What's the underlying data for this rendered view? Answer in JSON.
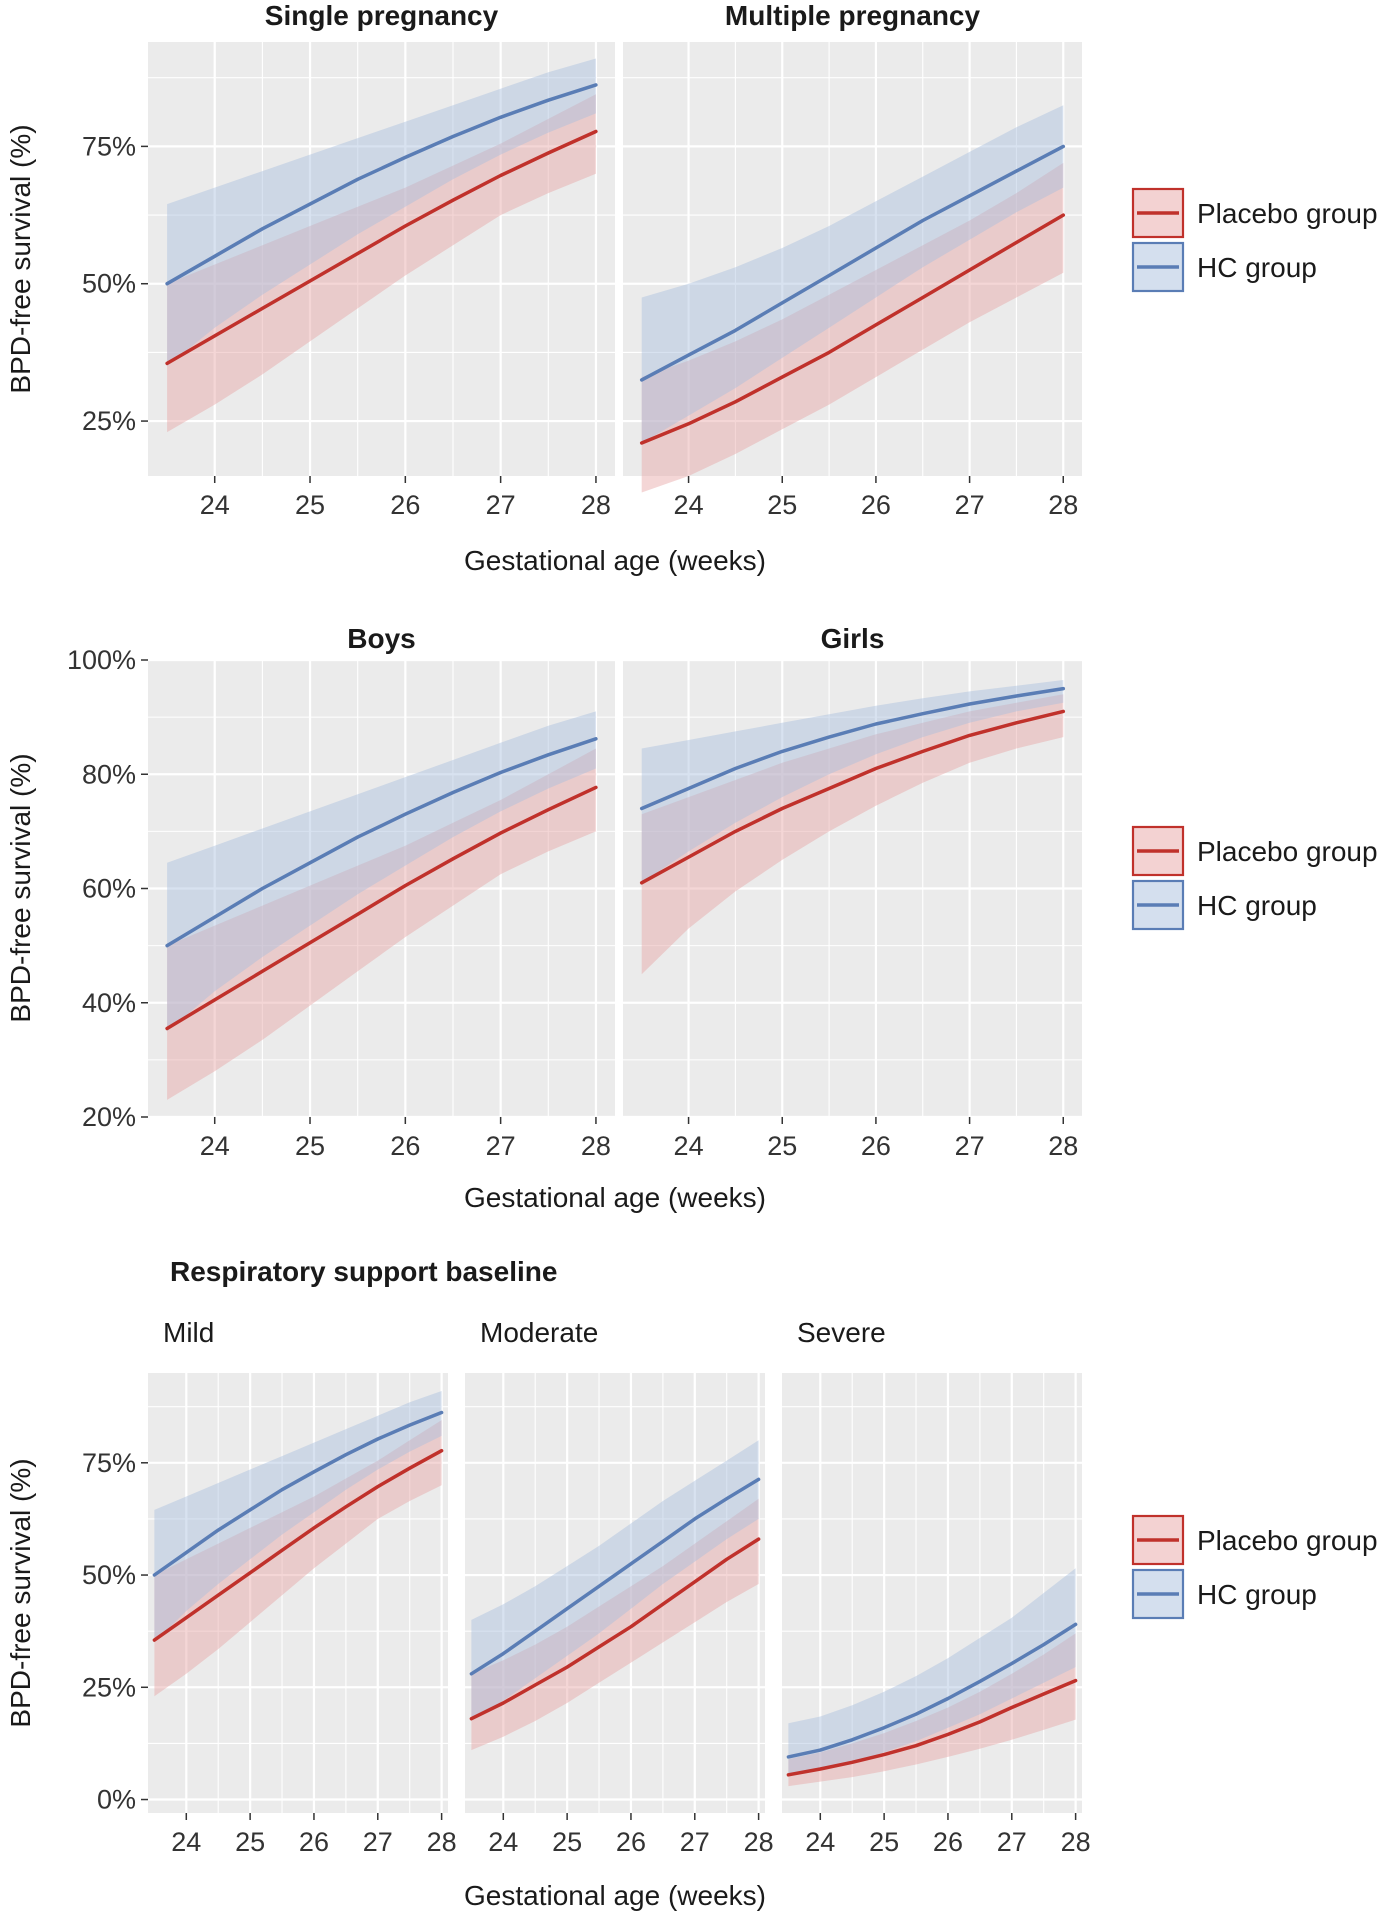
{
  "colors": {
    "placebo": "#c0312b",
    "placebo_band": "#e7a5a5",
    "hc": "#5a7db5",
    "hc_band": "#a9bfdd",
    "panel_bg": "#ebebeb"
  },
  "legend": {
    "placebo_label": "Placebo group",
    "hc_label": "HC group"
  },
  "section_title": "Respiratory support baseline",
  "chart_data": [
    {
      "type": "line",
      "title": "Single pregnancy",
      "xlabel": "Gestational age (weeks)",
      "ylabel": "BPD-free survival (%)",
      "x": [
        23.5,
        24,
        24.5,
        25,
        25.5,
        26,
        26.5,
        27,
        27.5,
        28
      ],
      "xticks": [
        "24",
        "25",
        "26",
        "27",
        "28"
      ],
      "xlim": [
        23.3,
        28.2
      ],
      "ylim": [
        15,
        94
      ],
      "yticks": [
        25,
        50,
        75
      ],
      "ytick_labels": [
        "25%",
        "50%",
        "75%"
      ],
      "series": [
        {
          "name": "Placebo group",
          "values": [
            35.5,
            40.5,
            45.5,
            50.5,
            55.5,
            60.5,
            65.2,
            69.7,
            73.8,
            77.7
          ],
          "lower": [
            23,
            28,
            33.5,
            39.5,
            45.5,
            51.5,
            57,
            62.5,
            66.5,
            70
          ],
          "upper": [
            50,
            53.5,
            57,
            60.5,
            64,
            67.5,
            71.5,
            75.5,
            80,
            84.5
          ]
        },
        {
          "name": "HC group",
          "values": [
            50,
            55,
            60,
            64.5,
            69,
            73,
            76.8,
            80.3,
            83.4,
            86.2
          ],
          "lower": [
            35,
            42,
            48,
            53.5,
            59,
            64,
            69,
            73.5,
            77.5,
            81
          ],
          "upper": [
            64.5,
            67.5,
            70.5,
            73.5,
            76.5,
            79.5,
            82.5,
            85.5,
            88.5,
            91
          ]
        }
      ]
    },
    {
      "type": "line",
      "title": "Multiple pregnancy",
      "xlabel": "Gestational age (weeks)",
      "ylabel": "BPD-free survival (%)",
      "x": [
        23.5,
        24,
        24.5,
        25,
        25.5,
        26,
        26.5,
        27,
        27.5,
        28
      ],
      "xticks": [
        "24",
        "25",
        "26",
        "27",
        "28"
      ],
      "xlim": [
        23.3,
        28.2
      ],
      "ylim": [
        15,
        94
      ],
      "yticks": [
        25,
        50,
        75
      ],
      "ytick_labels": [
        "25%",
        "50%",
        "75%"
      ],
      "series": [
        {
          "name": "Placebo group",
          "values": [
            21,
            24.5,
            28.5,
            33,
            37.5,
            42.5,
            47.5,
            52.5,
            57.5,
            62.5
          ],
          "lower": [
            12,
            15,
            19,
            23.5,
            28,
            33,
            38,
            43,
            47.5,
            52
          ],
          "upper": [
            33,
            36,
            39.5,
            43.5,
            48,
            52.5,
            57,
            61.5,
            66.5,
            72
          ]
        },
        {
          "name": "HC group",
          "values": [
            32.5,
            37,
            41.5,
            46.5,
            51.5,
            56.5,
            61.5,
            66,
            70.5,
            75
          ],
          "lower": [
            21,
            26,
            31,
            36.5,
            42,
            47.5,
            53,
            58,
            63,
            67.5
          ],
          "upper": [
            47.5,
            50,
            53,
            56.5,
            60.5,
            65,
            69.5,
            74,
            78.5,
            82.5
          ]
        }
      ]
    },
    {
      "type": "line",
      "title": "Boys",
      "xlabel": "Gestational age (weeks)",
      "ylabel": "BPD-free survival (%)",
      "x": [
        23.5,
        24,
        24.5,
        25,
        25.5,
        26,
        26.5,
        27,
        27.5,
        28
      ],
      "xticks": [
        "24",
        "25",
        "26",
        "27",
        "28"
      ],
      "xlim": [
        23.3,
        28.2
      ],
      "ylim": [
        20,
        100
      ],
      "yticks": [
        20,
        40,
        60,
        80,
        100
      ],
      "ytick_labels": [
        "20%",
        "40%",
        "60%",
        "80%",
        "100%"
      ],
      "series": [
        {
          "name": "Placebo group",
          "values": [
            35.5,
            40.5,
            45.5,
            50.5,
            55.5,
            60.5,
            65.2,
            69.7,
            73.8,
            77.7
          ],
          "lower": [
            23,
            28,
            33.5,
            39.5,
            45.5,
            51.5,
            57,
            62.5,
            66.5,
            70
          ],
          "upper": [
            50,
            53.5,
            57,
            60.5,
            64,
            67.5,
            71.5,
            75.5,
            80,
            84.5
          ]
        },
        {
          "name": "HC group",
          "values": [
            50,
            55,
            60,
            64.5,
            69,
            73,
            76.8,
            80.3,
            83.4,
            86.2
          ],
          "lower": [
            35,
            42,
            48,
            53.5,
            59,
            64,
            69,
            73.5,
            77.5,
            81
          ],
          "upper": [
            64.5,
            67.5,
            70.5,
            73.5,
            76.5,
            79.5,
            82.5,
            85.5,
            88.5,
            91
          ]
        }
      ]
    },
    {
      "type": "line",
      "title": "Girls",
      "xlabel": "Gestational age (weeks)",
      "ylabel": "BPD-free survival (%)",
      "x": [
        23.5,
        24,
        24.5,
        25,
        25.5,
        26,
        26.5,
        27,
        27.5,
        28
      ],
      "xticks": [
        "24",
        "25",
        "26",
        "27",
        "28"
      ],
      "xlim": [
        23.3,
        28.2
      ],
      "ylim": [
        20,
        100
      ],
      "yticks": [
        20,
        40,
        60,
        80,
        100
      ],
      "ytick_labels": [
        "20%",
        "40%",
        "60%",
        "80%",
        "100%"
      ],
      "series": [
        {
          "name": "Placebo group",
          "values": [
            61,
            65.5,
            70,
            74,
            77.5,
            81,
            84,
            86.8,
            89,
            91
          ],
          "lower": [
            45,
            53,
            59.5,
            65,
            70,
            74.5,
            78.5,
            82,
            84.5,
            86.5
          ],
          "upper": [
            73,
            76,
            79,
            82,
            84.5,
            87,
            89,
            91,
            92.5,
            94
          ]
        },
        {
          "name": "HC group",
          "values": [
            74,
            77.5,
            81,
            84,
            86.5,
            88.8,
            90.6,
            92.3,
            93.7,
            95
          ],
          "lower": [
            61,
            66.5,
            71.5,
            76,
            80,
            83.5,
            86.5,
            89,
            91,
            92.5
          ],
          "upper": [
            84.5,
            86,
            87.5,
            89,
            90.5,
            92,
            93.3,
            94.5,
            95.5,
            96.5
          ]
        }
      ]
    },
    {
      "type": "line",
      "title": "Mild",
      "xlabel": "Gestational age (weeks)",
      "ylabel": "BPD-free survival (%)",
      "x": [
        23.5,
        24,
        24.5,
        25,
        25.5,
        26,
        26.5,
        27,
        27.5,
        28
      ],
      "xticks": [
        "24",
        "25",
        "26",
        "27",
        "28"
      ],
      "xlim": [
        23.4,
        28.1
      ],
      "ylim": [
        -3,
        95
      ],
      "yticks": [
        0,
        25,
        50,
        75
      ],
      "ytick_labels": [
        "0%",
        "25%",
        "50%",
        "75%"
      ],
      "series": [
        {
          "name": "Placebo group",
          "values": [
            35.5,
            40.5,
            45.5,
            50.5,
            55.5,
            60.5,
            65.2,
            69.7,
            73.8,
            77.7
          ],
          "lower": [
            23,
            28,
            33.5,
            39.5,
            45.5,
            51.5,
            57,
            62.5,
            66.5,
            70
          ],
          "upper": [
            50,
            53.5,
            57,
            60.5,
            64,
            67.5,
            71.5,
            75.5,
            80,
            84.5
          ]
        },
        {
          "name": "HC group",
          "values": [
            50,
            55,
            60,
            64.5,
            69,
            73,
            76.8,
            80.3,
            83.4,
            86.2
          ],
          "lower": [
            35,
            42,
            48,
            53.5,
            59,
            64,
            69,
            73.5,
            77.5,
            81
          ],
          "upper": [
            64.5,
            67.5,
            70.5,
            73.5,
            76.5,
            79.5,
            82.5,
            85.5,
            88.5,
            91
          ]
        }
      ]
    },
    {
      "type": "line",
      "title": "Moderate",
      "xlabel": "Gestational age (weeks)",
      "ylabel": "BPD-free survival (%)",
      "x": [
        23.5,
        24,
        24.5,
        25,
        25.5,
        26,
        26.5,
        27,
        27.5,
        28
      ],
      "xticks": [
        "24",
        "25",
        "26",
        "27",
        "28"
      ],
      "xlim": [
        23.4,
        28.1
      ],
      "ylim": [
        -3,
        95
      ],
      "yticks": [
        0,
        25,
        50,
        75
      ],
      "ytick_labels": [
        "0%",
        "25%",
        "50%",
        "75%"
      ],
      "series": [
        {
          "name": "Placebo group",
          "values": [
            18,
            21.5,
            25.5,
            29.5,
            34,
            38.5,
            43.5,
            48.5,
            53.5,
            58
          ],
          "lower": [
            11,
            14,
            17.5,
            21.5,
            26,
            30.5,
            35,
            39.5,
            44,
            48
          ],
          "upper": [
            28,
            31,
            34.5,
            38.5,
            43,
            47.5,
            52,
            57,
            62,
            67
          ]
        },
        {
          "name": "HC group",
          "values": [
            28,
            32.5,
            37.5,
            42.5,
            47.5,
            52.5,
            57.5,
            62.5,
            67,
            71.3
          ],
          "lower": [
            18,
            22,
            27,
            32,
            37,
            42.5,
            48,
            53,
            58,
            62.5
          ],
          "upper": [
            40,
            43.5,
            47.5,
            52,
            56.5,
            61.5,
            66.5,
            71,
            75.5,
            80
          ]
        }
      ]
    },
    {
      "type": "line",
      "title": "Severe",
      "xlabel": "Gestational age (weeks)",
      "ylabel": "BPD-free survival (%)",
      "x": [
        23.5,
        24,
        24.5,
        25,
        25.5,
        26,
        26.5,
        27,
        27.5,
        28
      ],
      "xticks": [
        "24",
        "25",
        "26",
        "27",
        "28"
      ],
      "xlim": [
        23.4,
        28.1
      ],
      "ylim": [
        -3,
        95
      ],
      "yticks": [
        0,
        25,
        50,
        75
      ],
      "ytick_labels": [
        "0%",
        "25%",
        "50%",
        "75%"
      ],
      "series": [
        {
          "name": "Placebo group",
          "values": [
            5.5,
            6.8,
            8.3,
            10,
            12,
            14.5,
            17.3,
            20.5,
            23.5,
            26.5
          ],
          "lower": [
            3,
            4,
            5,
            6.3,
            7.8,
            9.5,
            11.3,
            13.3,
            15.5,
            17.8
          ],
          "upper": [
            9,
            10.5,
            12.5,
            14.8,
            17.5,
            20.5,
            24,
            28,
            32.3,
            37
          ]
        },
        {
          "name": "HC group",
          "values": [
            9.5,
            11,
            13.3,
            16,
            19,
            22.5,
            26.3,
            30.3,
            34.5,
            39
          ],
          "lower": [
            5.5,
            6.7,
            8.3,
            10.5,
            13,
            16,
            19,
            22.5,
            26,
            29.5
          ],
          "upper": [
            17,
            18.5,
            21,
            24,
            27.5,
            31.5,
            36,
            40.5,
            46,
            51.5
          ]
        }
      ]
    }
  ]
}
